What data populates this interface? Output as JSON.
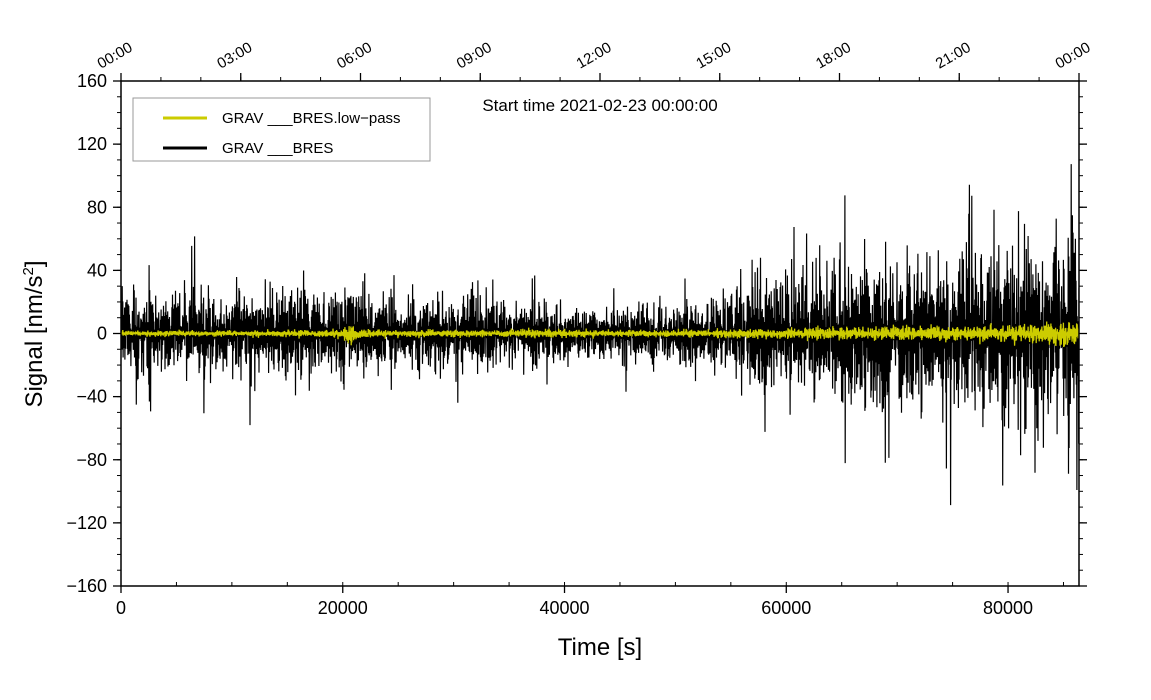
{
  "chart_data": {
    "type": "line",
    "xlabel": "Time [s]",
    "ylabel_main": "Signal [nm/s",
    "ylabel_sup": "2",
    "ylabel_end": "]",
    "annotation": "Start time 2021-02-23 00:00:00",
    "xlim": [
      0,
      86400
    ],
    "ylim": [
      -160,
      160
    ],
    "x_ticks": [
      {
        "value": 0,
        "label": "0"
      },
      {
        "value": 20000,
        "label": "20000"
      },
      {
        "value": 40000,
        "label": "40000"
      },
      {
        "value": 60000,
        "label": "60000"
      },
      {
        "value": 80000,
        "label": "80000"
      }
    ],
    "y_ticks": [
      {
        "value": 160,
        "label": "160"
      },
      {
        "value": 120,
        "label": "120"
      },
      {
        "value": 80,
        "label": "80"
      },
      {
        "value": 40,
        "label": "40"
      },
      {
        "value": 0,
        "label": "0"
      },
      {
        "value": -40,
        "label": "−40"
      },
      {
        "value": -80,
        "label": "−80"
      },
      {
        "value": -120,
        "label": "−120"
      },
      {
        "value": -160,
        "label": "−160"
      }
    ],
    "top_ticks": [
      {
        "value": 0,
        "label": "00:00"
      },
      {
        "value": 10800,
        "label": "03:00"
      },
      {
        "value": 21600,
        "label": "06:00"
      },
      {
        "value": 32400,
        "label": "09:00"
      },
      {
        "value": 43200,
        "label": "12:00"
      },
      {
        "value": 54000,
        "label": "15:00"
      },
      {
        "value": 64800,
        "label": "18:00"
      },
      {
        "value": 75600,
        "label": "21:00"
      },
      {
        "value": 86400,
        "label": "00:00"
      }
    ],
    "legend_position": "top-left",
    "series": [
      {
        "name": "GRAV ___BRES.low−pass",
        "color": "#cccc00",
        "envelope": [
          {
            "x": 0,
            "y": 2
          },
          {
            "x": 10000,
            "y": 2
          },
          {
            "x": 15000,
            "y": 2.5
          },
          {
            "x": 20000,
            "y": 3
          },
          {
            "x": 20500,
            "y": 8
          },
          {
            "x": 21500,
            "y": 3
          },
          {
            "x": 30000,
            "y": 2.5
          },
          {
            "x": 37000,
            "y": 3
          },
          {
            "x": 45000,
            "y": 2.5
          },
          {
            "x": 55000,
            "y": 3
          },
          {
            "x": 60000,
            "y": 4
          },
          {
            "x": 70000,
            "y": 5
          },
          {
            "x": 80000,
            "y": 6
          },
          {
            "x": 85000,
            "y": 9
          },
          {
            "x": 86400,
            "y": 7
          }
        ]
      },
      {
        "name": "GRAV ___BRES",
        "color": "#000000",
        "envelope": [
          {
            "x": 0,
            "y": 30
          },
          {
            "x": 10000,
            "y": 28
          },
          {
            "x": 20000,
            "y": 27
          },
          {
            "x": 30000,
            "y": 24
          },
          {
            "x": 40000,
            "y": 20
          },
          {
            "x": 45000,
            "y": 18
          },
          {
            "x": 50000,
            "y": 22
          },
          {
            "x": 55000,
            "y": 28
          },
          {
            "x": 60000,
            "y": 40
          },
          {
            "x": 65000,
            "y": 48
          },
          {
            "x": 70000,
            "y": 50
          },
          {
            "x": 75000,
            "y": 55
          },
          {
            "x": 80000,
            "y": 62
          },
          {
            "x": 84000,
            "y": 70
          },
          {
            "x": 86400,
            "y": 75
          }
        ]
      }
    ]
  }
}
